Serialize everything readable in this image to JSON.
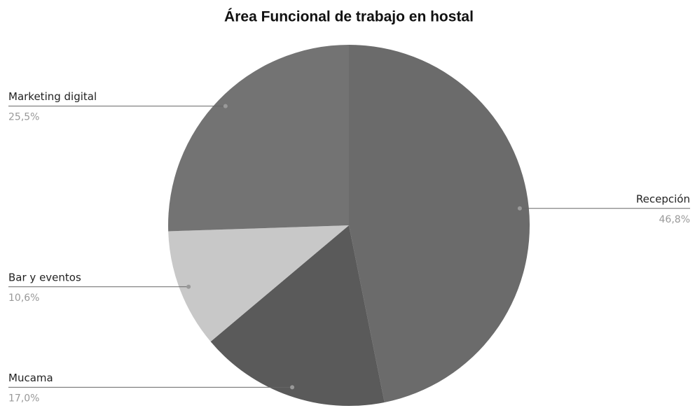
{
  "chart_data": {
    "type": "pie",
    "title": "Área Funcional de trabajo en hostal",
    "categories": [
      "Recepción",
      "Mucama",
      "Bar y eventos",
      "Marketing digital"
    ],
    "values": [
      46.8,
      17.0,
      10.6,
      25.5
    ],
    "value_labels": [
      "46,8%",
      "17,0%",
      "10,6%",
      "25,5%"
    ],
    "colors": [
      "#6b6b6b",
      "#5a5a5a",
      "#c8c8c8",
      "#737373"
    ]
  }
}
